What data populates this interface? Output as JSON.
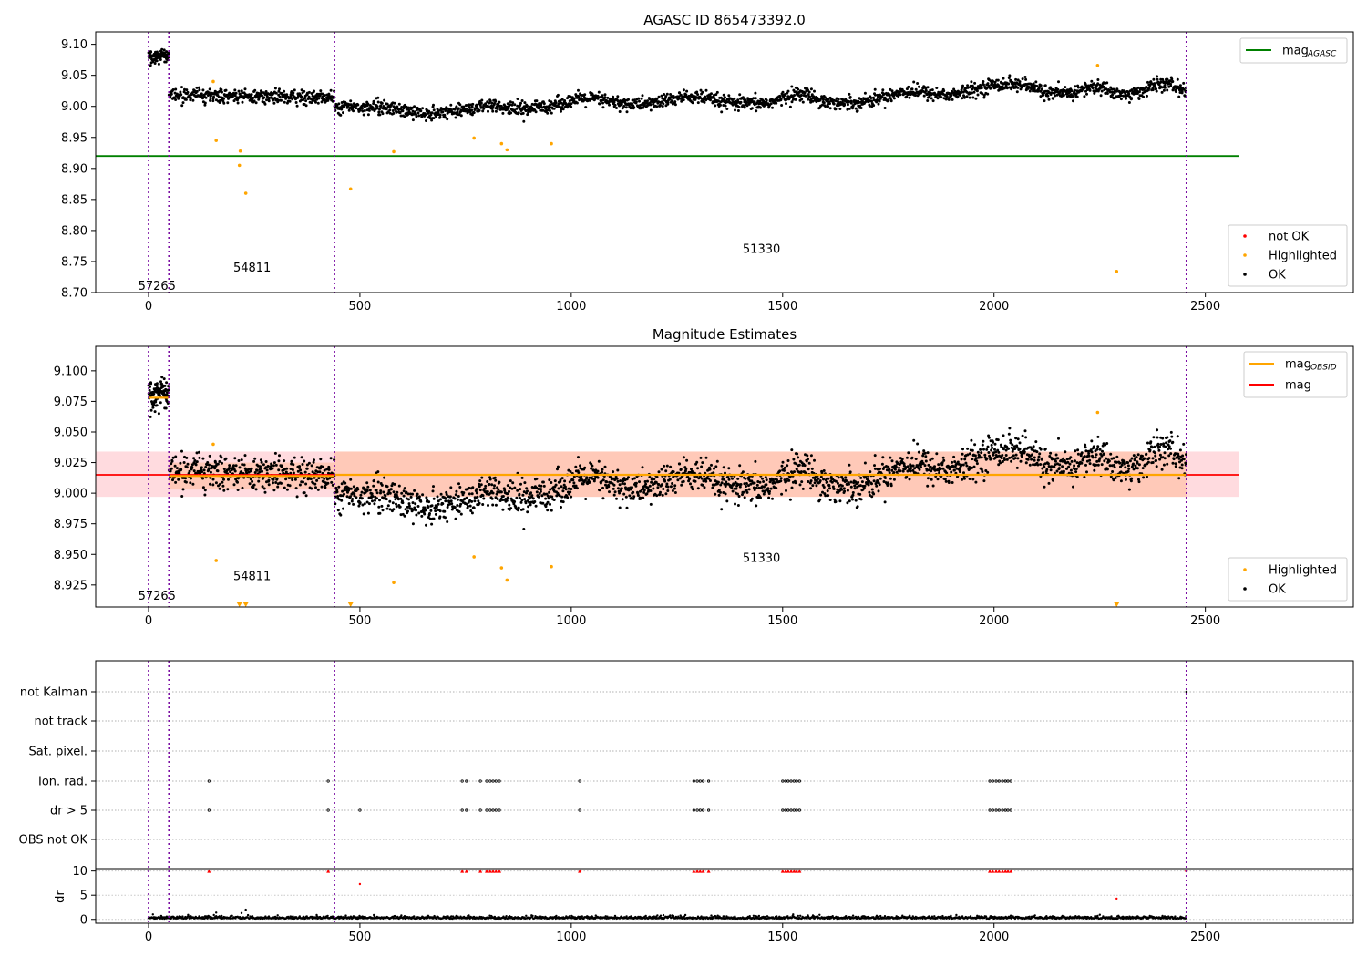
{
  "chart_data": [
    {
      "type": "scatter",
      "title": "AGASC ID 865473392.0",
      "xlim": [
        -125,
        2850
      ],
      "ylim": [
        8.7,
        9.12
      ],
      "xticks": [
        0,
        500,
        1000,
        1500,
        2000,
        2500
      ],
      "yticks": [
        8.7,
        8.75,
        8.8,
        8.85,
        8.9,
        8.95,
        9.0,
        9.05,
        9.1
      ],
      "ytick_decimals": 2,
      "vlines": [
        0,
        48,
        440,
        2455
      ],
      "mag_agasc": 8.92,
      "mag_agasc_xrange": [
        -125,
        2580
      ],
      "obsid_labels": [
        {
          "text": "57265",
          "x": 20,
          "y": 8.71
        },
        {
          "text": "54811",
          "x": 245,
          "y": 8.74
        },
        {
          "text": "51330",
          "x": 1450,
          "y": 8.77
        }
      ],
      "highlighted_points": [
        [
          153,
          9.04
        ],
        [
          160,
          8.945
        ],
        [
          215,
          8.905
        ],
        [
          217,
          8.928
        ],
        [
          230,
          8.86
        ],
        [
          580,
          8.927
        ],
        [
          478,
          8.867
        ],
        [
          770,
          8.949
        ],
        [
          835,
          8.94
        ],
        [
          848,
          8.93
        ],
        [
          953,
          8.94
        ],
        [
          2245,
          9.066
        ],
        [
          2290,
          8.734
        ]
      ],
      "segments": [
        {
          "x0": 0,
          "x1": 48,
          "mean": 9.08,
          "spread": 0.006
        },
        {
          "x0": 48,
          "x1": 440,
          "mean": 9.015,
          "spread": 0.006
        },
        {
          "x0": 440,
          "x1": 2455,
          "mean": 9.013,
          "spread": 0.008
        }
      ],
      "legend_top": [
        {
          "label": "mag",
          "sub": "AGASC",
          "color": "#008000"
        }
      ],
      "legend_bottom": [
        {
          "label": "not OK",
          "color": "#ff0000"
        },
        {
          "label": "Highlighted",
          "color": "#ffa500"
        },
        {
          "label": "OK",
          "color": "#000000"
        }
      ]
    },
    {
      "type": "scatter",
      "title": "Magnitude Estimates",
      "xlim": [
        -125,
        2850
      ],
      "ylim": [
        8.907,
        9.12
      ],
      "xticks": [
        0,
        500,
        1000,
        1500,
        2000,
        2500
      ],
      "yticks": [
        8.925,
        8.95,
        8.975,
        9.0,
        9.025,
        9.05,
        9.075,
        9.1
      ],
      "ytick_decimals": 3,
      "vlines": [
        0,
        48,
        440,
        2455
      ],
      "mag": 9.015,
      "mag_band": [
        8.997,
        9.034
      ],
      "mag_band_xrange": [
        -125,
        2580
      ],
      "mag_obsid": [
        {
          "x0": 0,
          "x1": 48,
          "value": 9.078
        },
        {
          "x0": 48,
          "x1": 440,
          "value": 9.014
        },
        {
          "x0": 440,
          "x1": 2455,
          "value": 9.015
        }
      ],
      "mag_obsid_band": [
        {
          "x0": 48,
          "x1": 440,
          "range": [
            9.003,
            9.025
          ]
        },
        {
          "x0": 440,
          "x1": 2455,
          "range": [
            8.997,
            9.034
          ]
        }
      ],
      "obsid_labels": [
        {
          "text": "57265",
          "x": 20,
          "y": 8.916
        },
        {
          "text": "54811",
          "x": 245,
          "y": 8.932
        },
        {
          "text": "51330",
          "x": 1450,
          "y": 8.947
        }
      ],
      "highlighted_points": [
        [
          153,
          9.04
        ],
        [
          160,
          8.945
        ],
        [
          580,
          8.927
        ],
        [
          770,
          8.948
        ],
        [
          835,
          8.939
        ],
        [
          848,
          8.929
        ],
        [
          953,
          8.94
        ],
        [
          2245,
          9.066
        ]
      ],
      "highlighted_offscale_x": [
        215,
        230,
        478,
        2290
      ],
      "legend_top": [
        {
          "label": "mag",
          "sub": "OBSID",
          "color": "#ffa500"
        },
        {
          "label": "mag",
          "sub": "",
          "color": "#ff0000"
        }
      ],
      "legend_bottom": [
        {
          "label": "Highlighted",
          "color": "#ffa500"
        },
        {
          "label": "OK",
          "color": "#000000"
        }
      ]
    },
    {
      "type": "scatter",
      "title": "",
      "xlim": [
        -125,
        2850
      ],
      "xticks": [
        0,
        500,
        1000,
        1500,
        2000,
        2500
      ],
      "vlines": [
        0,
        48,
        440,
        2455
      ],
      "flag_rows": [
        "not Kalman",
        "not track",
        "Sat. pixel.",
        "Ion. rad.",
        "dr > 5",
        "OBS not OK"
      ],
      "flag_points_x": [
        143,
        425,
        742,
        752,
        785,
        800,
        808,
        815,
        822,
        830,
        1020,
        1290,
        1298,
        1305,
        1312,
        1325,
        1500,
        1507,
        1513,
        1520,
        1527,
        1533,
        1540,
        1990,
        1997,
        2005,
        2012,
        2020,
        2027,
        2033,
        2040
      ],
      "dr_ylabel": "dr",
      "dr_yticks": [
        0,
        5,
        10
      ],
      "dr_ylim": [
        -0.8,
        10.5
      ],
      "dr_outliers": [
        [
          500,
          7.3
        ],
        [
          160,
          1.4
        ],
        [
          220,
          1.3
        ],
        [
          230,
          2.0
        ],
        [
          2290,
          4.3
        ]
      ]
    }
  ]
}
